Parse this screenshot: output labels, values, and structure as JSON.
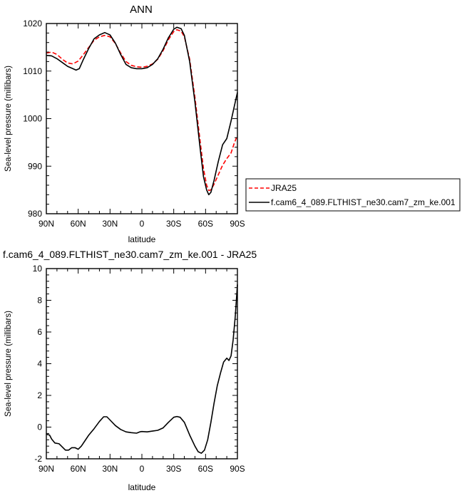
{
  "chart_data": [
    {
      "type": "line",
      "title": "ANN",
      "xlabel": "latitude",
      "ylabel": "Sea-level pressure (millibars)",
      "x_tick_labels": [
        "90N",
        "60N",
        "30N",
        "0",
        "30S",
        "60S",
        "90S"
      ],
      "x_tick_values": [
        90,
        60,
        30,
        0,
        -30,
        -60,
        -90
      ],
      "xlim": [
        90,
        -90
      ],
      "ylim": [
        980,
        1020
      ],
      "y_ticks": [
        "980",
        "990",
        "1000",
        "1010",
        "1020"
      ],
      "y_tick_values": [
        980,
        990,
        1000,
        1010,
        1020
      ],
      "legend": {
        "placement": "right"
      },
      "series": [
        {
          "name": "JRA25",
          "color": "#ff0000",
          "dash": "dashed",
          "points": [
            [
              90,
              1013.8
            ],
            [
              85,
              1014.0
            ],
            [
              80,
              1013.5
            ],
            [
              75,
              1012.5
            ],
            [
              70,
              1011.7
            ],
            [
              65,
              1011.5
            ],
            [
              60,
              1012.1
            ],
            [
              55,
              1013.5
            ],
            [
              50,
              1015.0
            ],
            [
              45,
              1016.5
            ],
            [
              40,
              1017.2
            ],
            [
              35,
              1017.5
            ],
            [
              30,
              1017.2
            ],
            [
              25,
              1015.8
            ],
            [
              20,
              1013.8
            ],
            [
              15,
              1012.0
            ],
            [
              10,
              1011.2
            ],
            [
              5,
              1010.9
            ],
            [
              0,
              1010.8
            ],
            [
              -5,
              1011.0
            ],
            [
              -10,
              1011.5
            ],
            [
              -15,
              1012.5
            ],
            [
              -20,
              1014.3
            ],
            [
              -25,
              1016.6
            ],
            [
              -30,
              1018.3
            ],
            [
              -33,
              1018.7
            ],
            [
              -37,
              1018.4
            ],
            [
              -40,
              1017.2
            ],
            [
              -45,
              1012.5
            ],
            [
              -50,
              1004.5
            ],
            [
              -55,
              995.0
            ],
            [
              -58,
              989.5
            ],
            [
              -61,
              986.0
            ],
            [
              -63,
              984.9
            ],
            [
              -65,
              985.0
            ],
            [
              -68,
              986.2
            ],
            [
              -72,
              988.2
            ],
            [
              -76,
              990.2
            ],
            [
              -80,
              991.6
            ],
            [
              -84,
              992.8
            ],
            [
              -87,
              994.8
            ],
            [
              -90,
              996.5
            ]
          ]
        },
        {
          "name": "f.cam6_4_089.FLTHIST_ne30.cam7_zm_ke.001",
          "color": "#000000",
          "dash": "solid",
          "points": [
            [
              90,
              1013.3
            ],
            [
              85,
              1013.2
            ],
            [
              80,
              1012.6
            ],
            [
              75,
              1011.8
            ],
            [
              70,
              1011.0
            ],
            [
              65,
              1010.5
            ],
            [
              62,
              1010.2
            ],
            [
              59,
              1010.5
            ],
            [
              55,
              1012.5
            ],
            [
              50,
              1014.8
            ],
            [
              45,
              1016.8
            ],
            [
              40,
              1017.6
            ],
            [
              35,
              1018.1
            ],
            [
              30,
              1017.6
            ],
            [
              25,
              1015.9
            ],
            [
              20,
              1013.5
            ],
            [
              15,
              1011.4
            ],
            [
              10,
              1010.7
            ],
            [
              5,
              1010.5
            ],
            [
              0,
              1010.5
            ],
            [
              -5,
              1010.7
            ],
            [
              -10,
              1011.4
            ],
            [
              -15,
              1012.6
            ],
            [
              -20,
              1014.6
            ],
            [
              -25,
              1017.0
            ],
            [
              -30,
              1018.8
            ],
            [
              -33,
              1019.2
            ],
            [
              -37,
              1018.9
            ],
            [
              -40,
              1017.5
            ],
            [
              -45,
              1012.0
            ],
            [
              -50,
              1003.5
            ],
            [
              -55,
              993.5
            ],
            [
              -58,
              987.8
            ],
            [
              -61,
              985.0
            ],
            [
              -63,
              984.0
            ],
            [
              -65,
              984.5
            ],
            [
              -68,
              987.0
            ],
            [
              -72,
              991.0
            ],
            [
              -76,
              994.5
            ],
            [
              -80,
              995.8
            ],
            [
              -84,
              999.5
            ],
            [
              -87,
              1002.5
            ],
            [
              -90,
              1005.5
            ]
          ]
        }
      ]
    },
    {
      "type": "line",
      "title": "f.cam6_4_089.FLTHIST_ne30.cam7_zm_ke.001 - JRA25",
      "xlabel": "latitude",
      "ylabel": "Sea-level pressure (millibars)",
      "x_tick_labels": [
        "90N",
        "60N",
        "30N",
        "0",
        "30S",
        "60S",
        "90S"
      ],
      "x_tick_values": [
        90,
        60,
        30,
        0,
        -30,
        -60,
        -90
      ],
      "xlim": [
        90,
        -90
      ],
      "ylim": [
        -2,
        10
      ],
      "y_ticks": [
        "-2",
        "0",
        "2",
        "4",
        "6",
        "8",
        "10"
      ],
      "y_tick_values": [
        -2,
        0,
        2,
        4,
        6,
        8,
        10
      ],
      "series": [
        {
          "color": "#000000",
          "dash": "solid",
          "points": [
            [
              90,
              -0.45
            ],
            [
              87,
              -0.5
            ],
            [
              85,
              -0.75
            ],
            [
              82,
              -1.0
            ],
            [
              78,
              -1.05
            ],
            [
              75,
              -1.25
            ],
            [
              72,
              -1.45
            ],
            [
              69,
              -1.45
            ],
            [
              66,
              -1.3
            ],
            [
              63,
              -1.3
            ],
            [
              60,
              -1.4
            ],
            [
              57,
              -1.2
            ],
            [
              54,
              -0.9
            ],
            [
              50,
              -0.5
            ],
            [
              45,
              -0.1
            ],
            [
              40,
              0.35
            ],
            [
              36,
              0.65
            ],
            [
              33,
              0.65
            ],
            [
              30,
              0.45
            ],
            [
              25,
              0.1
            ],
            [
              20,
              -0.15
            ],
            [
              15,
              -0.3
            ],
            [
              10,
              -0.35
            ],
            [
              5,
              -0.38
            ],
            [
              2,
              -0.3
            ],
            [
              0,
              -0.28
            ],
            [
              -5,
              -0.3
            ],
            [
              -10,
              -0.25
            ],
            [
              -15,
              -0.2
            ],
            [
              -20,
              -0.05
            ],
            [
              -25,
              0.3
            ],
            [
              -30,
              0.62
            ],
            [
              -33,
              0.67
            ],
            [
              -36,
              0.62
            ],
            [
              -40,
              0.3
            ],
            [
              -45,
              -0.5
            ],
            [
              -50,
              -1.2
            ],
            [
              -53,
              -1.55
            ],
            [
              -56,
              -1.65
            ],
            [
              -59,
              -1.45
            ],
            [
              -62,
              -0.8
            ],
            [
              -65,
              0.3
            ],
            [
              -68,
              1.5
            ],
            [
              -71,
              2.6
            ],
            [
              -74,
              3.4
            ],
            [
              -77,
              4.1
            ],
            [
              -80,
              4.35
            ],
            [
              -82,
              4.2
            ],
            [
              -84,
              4.5
            ],
            [
              -86,
              5.5
            ],
            [
              -88,
              7.0
            ],
            [
              -90,
              9.0
            ]
          ]
        }
      ]
    }
  ]
}
